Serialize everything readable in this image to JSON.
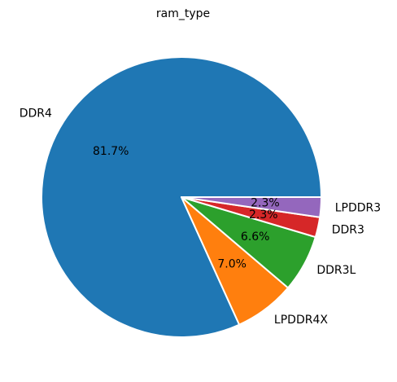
{
  "chart_data": {
    "type": "pie",
    "title": "ram_type",
    "slices": [
      {
        "label": "DDR4",
        "value": 81.7,
        "pct_label": "81.7%",
        "color": "#1f77b4"
      },
      {
        "label": "LPDDR4X",
        "value": 7.0,
        "pct_label": "7.0%",
        "color": "#ff7f0e"
      },
      {
        "label": "DDR3L",
        "value": 6.6,
        "pct_label": "6.6%",
        "color": "#2ca02c"
      },
      {
        "label": "DDR3",
        "value": 2.3,
        "pct_label": "2.3%",
        "color": "#d62728"
      },
      {
        "label": "LPDDR3",
        "value": 2.3,
        "pct_label": "2.3%",
        "color": "#9467bd"
      }
    ]
  }
}
